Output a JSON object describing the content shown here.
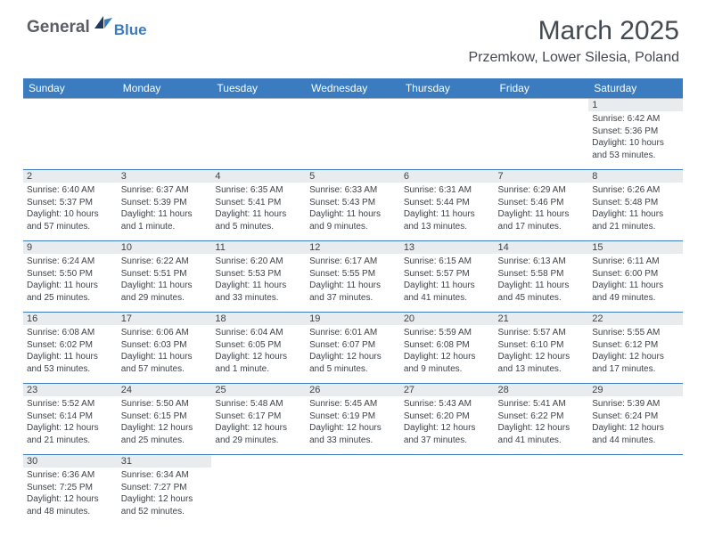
{
  "logo": {
    "general": "General",
    "blue": "Blue"
  },
  "title": "March 2025",
  "location": "Przemkow, Lower Silesia, Poland",
  "day_headers": [
    "Sunday",
    "Monday",
    "Tuesday",
    "Wednesday",
    "Thursday",
    "Friday",
    "Saturday"
  ],
  "colors": {
    "header_bg": "#3a7cbf",
    "header_text": "#ffffff",
    "daynum_bg": "#e8ecef",
    "text": "#3d4349",
    "border": "#a8b0b8"
  },
  "weeks": [
    [
      {
        "day": "",
        "sunrise": "",
        "sunset": "",
        "daylight": ""
      },
      {
        "day": "",
        "sunrise": "",
        "sunset": "",
        "daylight": ""
      },
      {
        "day": "",
        "sunrise": "",
        "sunset": "",
        "daylight": ""
      },
      {
        "day": "",
        "sunrise": "",
        "sunset": "",
        "daylight": ""
      },
      {
        "day": "",
        "sunrise": "",
        "sunset": "",
        "daylight": ""
      },
      {
        "day": "",
        "sunrise": "",
        "sunset": "",
        "daylight": ""
      },
      {
        "day": "1",
        "sunrise": "Sunrise: 6:42 AM",
        "sunset": "Sunset: 5:36 PM",
        "daylight": "Daylight: 10 hours and 53 minutes."
      }
    ],
    [
      {
        "day": "2",
        "sunrise": "Sunrise: 6:40 AM",
        "sunset": "Sunset: 5:37 PM",
        "daylight": "Daylight: 10 hours and 57 minutes."
      },
      {
        "day": "3",
        "sunrise": "Sunrise: 6:37 AM",
        "sunset": "Sunset: 5:39 PM",
        "daylight": "Daylight: 11 hours and 1 minute."
      },
      {
        "day": "4",
        "sunrise": "Sunrise: 6:35 AM",
        "sunset": "Sunset: 5:41 PM",
        "daylight": "Daylight: 11 hours and 5 minutes."
      },
      {
        "day": "5",
        "sunrise": "Sunrise: 6:33 AM",
        "sunset": "Sunset: 5:43 PM",
        "daylight": "Daylight: 11 hours and 9 minutes."
      },
      {
        "day": "6",
        "sunrise": "Sunrise: 6:31 AM",
        "sunset": "Sunset: 5:44 PM",
        "daylight": "Daylight: 11 hours and 13 minutes."
      },
      {
        "day": "7",
        "sunrise": "Sunrise: 6:29 AM",
        "sunset": "Sunset: 5:46 PM",
        "daylight": "Daylight: 11 hours and 17 minutes."
      },
      {
        "day": "8",
        "sunrise": "Sunrise: 6:26 AM",
        "sunset": "Sunset: 5:48 PM",
        "daylight": "Daylight: 11 hours and 21 minutes."
      }
    ],
    [
      {
        "day": "9",
        "sunrise": "Sunrise: 6:24 AM",
        "sunset": "Sunset: 5:50 PM",
        "daylight": "Daylight: 11 hours and 25 minutes."
      },
      {
        "day": "10",
        "sunrise": "Sunrise: 6:22 AM",
        "sunset": "Sunset: 5:51 PM",
        "daylight": "Daylight: 11 hours and 29 minutes."
      },
      {
        "day": "11",
        "sunrise": "Sunrise: 6:20 AM",
        "sunset": "Sunset: 5:53 PM",
        "daylight": "Daylight: 11 hours and 33 minutes."
      },
      {
        "day": "12",
        "sunrise": "Sunrise: 6:17 AM",
        "sunset": "Sunset: 5:55 PM",
        "daylight": "Daylight: 11 hours and 37 minutes."
      },
      {
        "day": "13",
        "sunrise": "Sunrise: 6:15 AM",
        "sunset": "Sunset: 5:57 PM",
        "daylight": "Daylight: 11 hours and 41 minutes."
      },
      {
        "day": "14",
        "sunrise": "Sunrise: 6:13 AM",
        "sunset": "Sunset: 5:58 PM",
        "daylight": "Daylight: 11 hours and 45 minutes."
      },
      {
        "day": "15",
        "sunrise": "Sunrise: 6:11 AM",
        "sunset": "Sunset: 6:00 PM",
        "daylight": "Daylight: 11 hours and 49 minutes."
      }
    ],
    [
      {
        "day": "16",
        "sunrise": "Sunrise: 6:08 AM",
        "sunset": "Sunset: 6:02 PM",
        "daylight": "Daylight: 11 hours and 53 minutes."
      },
      {
        "day": "17",
        "sunrise": "Sunrise: 6:06 AM",
        "sunset": "Sunset: 6:03 PM",
        "daylight": "Daylight: 11 hours and 57 minutes."
      },
      {
        "day": "18",
        "sunrise": "Sunrise: 6:04 AM",
        "sunset": "Sunset: 6:05 PM",
        "daylight": "Daylight: 12 hours and 1 minute."
      },
      {
        "day": "19",
        "sunrise": "Sunrise: 6:01 AM",
        "sunset": "Sunset: 6:07 PM",
        "daylight": "Daylight: 12 hours and 5 minutes."
      },
      {
        "day": "20",
        "sunrise": "Sunrise: 5:59 AM",
        "sunset": "Sunset: 6:08 PM",
        "daylight": "Daylight: 12 hours and 9 minutes."
      },
      {
        "day": "21",
        "sunrise": "Sunrise: 5:57 AM",
        "sunset": "Sunset: 6:10 PM",
        "daylight": "Daylight: 12 hours and 13 minutes."
      },
      {
        "day": "22",
        "sunrise": "Sunrise: 5:55 AM",
        "sunset": "Sunset: 6:12 PM",
        "daylight": "Daylight: 12 hours and 17 minutes."
      }
    ],
    [
      {
        "day": "23",
        "sunrise": "Sunrise: 5:52 AM",
        "sunset": "Sunset: 6:14 PM",
        "daylight": "Daylight: 12 hours and 21 minutes."
      },
      {
        "day": "24",
        "sunrise": "Sunrise: 5:50 AM",
        "sunset": "Sunset: 6:15 PM",
        "daylight": "Daylight: 12 hours and 25 minutes."
      },
      {
        "day": "25",
        "sunrise": "Sunrise: 5:48 AM",
        "sunset": "Sunset: 6:17 PM",
        "daylight": "Daylight: 12 hours and 29 minutes."
      },
      {
        "day": "26",
        "sunrise": "Sunrise: 5:45 AM",
        "sunset": "Sunset: 6:19 PM",
        "daylight": "Daylight: 12 hours and 33 minutes."
      },
      {
        "day": "27",
        "sunrise": "Sunrise: 5:43 AM",
        "sunset": "Sunset: 6:20 PM",
        "daylight": "Daylight: 12 hours and 37 minutes."
      },
      {
        "day": "28",
        "sunrise": "Sunrise: 5:41 AM",
        "sunset": "Sunset: 6:22 PM",
        "daylight": "Daylight: 12 hours and 41 minutes."
      },
      {
        "day": "29",
        "sunrise": "Sunrise: 5:39 AM",
        "sunset": "Sunset: 6:24 PM",
        "daylight": "Daylight: 12 hours and 44 minutes."
      }
    ],
    [
      {
        "day": "30",
        "sunrise": "Sunrise: 6:36 AM",
        "sunset": "Sunset: 7:25 PM",
        "daylight": "Daylight: 12 hours and 48 minutes."
      },
      {
        "day": "31",
        "sunrise": "Sunrise: 6:34 AM",
        "sunset": "Sunset: 7:27 PM",
        "daylight": "Daylight: 12 hours and 52 minutes."
      },
      {
        "day": "",
        "sunrise": "",
        "sunset": "",
        "daylight": ""
      },
      {
        "day": "",
        "sunrise": "",
        "sunset": "",
        "daylight": ""
      },
      {
        "day": "",
        "sunrise": "",
        "sunset": "",
        "daylight": ""
      },
      {
        "day": "",
        "sunrise": "",
        "sunset": "",
        "daylight": ""
      },
      {
        "day": "",
        "sunrise": "",
        "sunset": "",
        "daylight": ""
      }
    ]
  ]
}
